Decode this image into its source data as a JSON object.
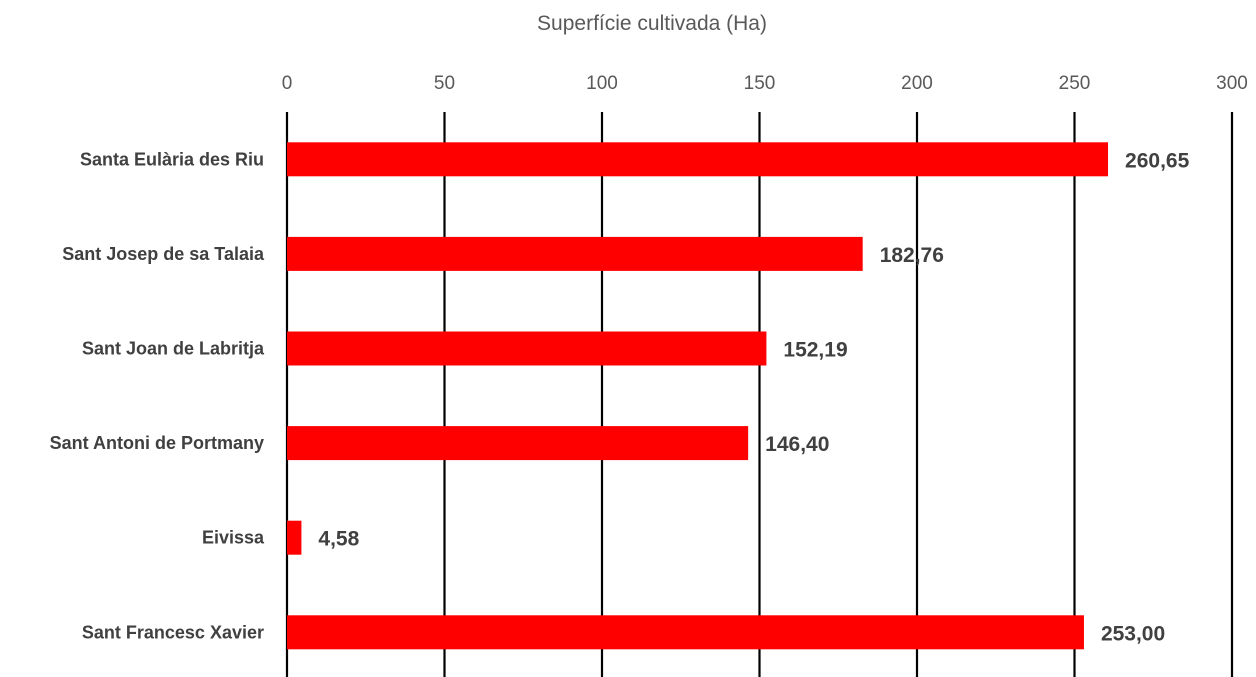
{
  "chart_data": {
    "type": "bar",
    "orientation": "horizontal",
    "title": "",
    "xlabel": "Superfície cultivada (Ha)",
    "ylabel": "",
    "xlim": [
      0,
      300
    ],
    "x_ticks": [
      0,
      50,
      100,
      150,
      200,
      250,
      300
    ],
    "x_axis_position": "top",
    "grid": true,
    "legend": "none",
    "categories": [
      "Santa Eulària des Riu",
      "Sant Josep de sa Talaia",
      "Sant Joan de Labritja",
      "Sant Antoni de Portmany",
      "Eivissa",
      "Sant Francesc Xavier"
    ],
    "values": [
      260.65,
      182.76,
      152.19,
      146.4,
      4.58,
      253.0
    ],
    "data_labels": [
      "260,65",
      "182,76",
      "152,19",
      "146,40",
      "4,58",
      "253,00"
    ],
    "bar_color": "#ff0000",
    "gridline_color": "#000000"
  }
}
